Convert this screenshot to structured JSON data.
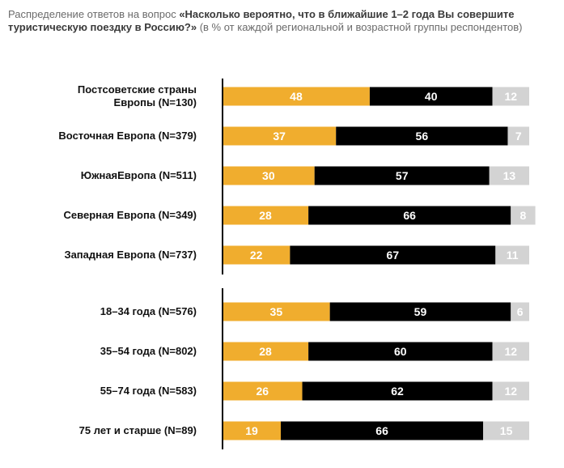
{
  "chart_data": {
    "type": "stacked-bar",
    "title": [
      "Распределение ответов на вопрос ",
      "«Насколько вероятно, что в ближайшие 1–2 года Вы совершите туристическую поездку в Россию?»",
      " (в % от каждой региональной и возрастной группы респондентов)"
    ],
    "categories": [
      "Постсоветские страны Европы (N=130)",
      "Восточная Европа (N=379)",
      "ЮжнаяЕвропа (N=511)",
      "Северная Европа (N=349)",
      "Западная Европа (N=737)",
      "18–34 года (N=576)",
      "35–54 года (N=802)",
      "55–74 года (N=583)",
      "75 лет и старше (N=89)"
    ],
    "series": [
      {
        "color": "#f0ad2e",
        "values": [
          48,
          37,
          30,
          28,
          22,
          35,
          28,
          26,
          19
        ]
      },
      {
        "color": "#000000",
        "values": [
          40,
          56,
          57,
          66,
          67,
          59,
          60,
          62,
          66
        ]
      },
      {
        "color": "#d3d3d3",
        "values": [
          12,
          7,
          13,
          8,
          11,
          6,
          12,
          12,
          15
        ]
      }
    ],
    "xlim": [
      0,
      100
    ]
  }
}
